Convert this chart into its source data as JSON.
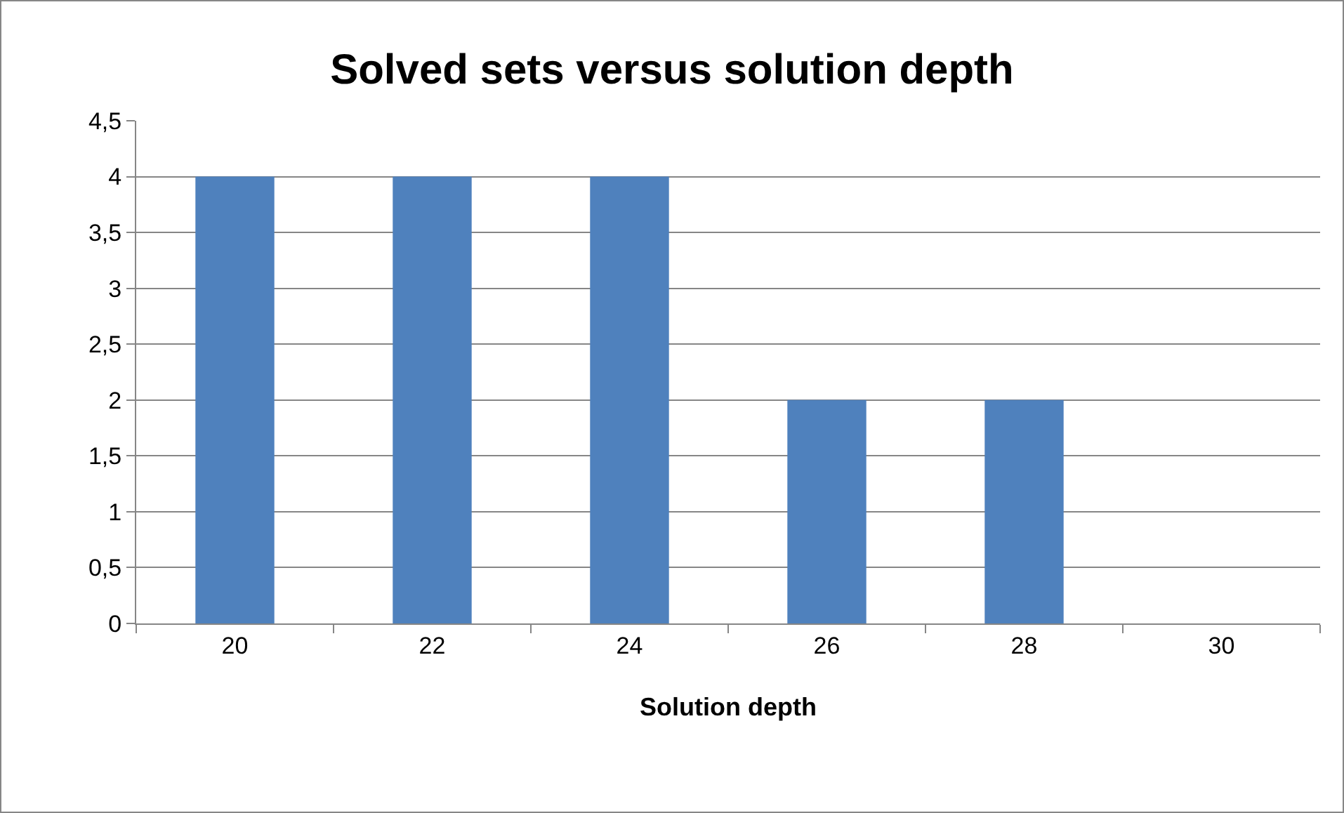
{
  "chart_data": {
    "type": "bar",
    "title": "Solved sets versus solution depth",
    "xlabel": "Solution depth",
    "categories": [
      "20",
      "22",
      "24",
      "26",
      "28",
      "30"
    ],
    "values": [
      4,
      4,
      4,
      2,
      2,
      0
    ],
    "color": "#4f81bd",
    "ylim": [
      0,
      4.5
    ],
    "yticks": [
      0,
      {
        "value": 0.5,
        "label": "0,5"
      },
      1,
      {
        "value": 1.5,
        "label": "1,5"
      },
      2,
      {
        "value": 2.5,
        "label": "2,5"
      },
      3,
      {
        "value": 3.5,
        "label": "3,5"
      },
      4,
      {
        "value": 4.5,
        "label": "4,5"
      }
    ],
    "grid": "y"
  }
}
